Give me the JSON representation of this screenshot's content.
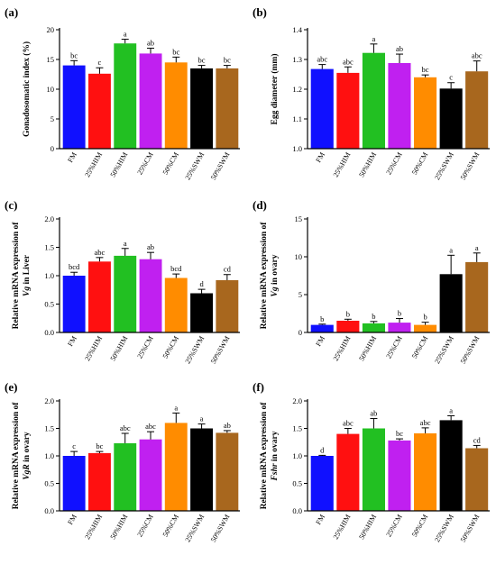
{
  "colors": {
    "FM": "#1010ff",
    "25%HIM": "#ff1010",
    "50%HIM": "#22c022",
    "25%CM": "#c020f0",
    "50%CM": "#ff8c00",
    "25%SWM": "#000000",
    "50%SWM": "#a8671e"
  },
  "chart_data": [
    {
      "type": "bar",
      "panel": "(a)",
      "ylabel_lines": [
        "Gonadosomatic index (%)"
      ],
      "categories": [
        "FM",
        "25%HIM",
        "50%HIM",
        "25%CM",
        "50%CM",
        "25%SWM",
        "50%SWM"
      ],
      "values": [
        14.0,
        12.6,
        17.7,
        16.0,
        14.5,
        13.5,
        13.5
      ],
      "errors": [
        0.8,
        1.0,
        0.7,
        0.9,
        0.9,
        0.5,
        0.5
      ],
      "letters": [
        "bc",
        "c",
        "a",
        "ab",
        "bc",
        "bc",
        "bc"
      ],
      "ylim": [
        0,
        20
      ],
      "yticks": [
        "0",
        "5",
        "10",
        "15",
        "20"
      ]
    },
    {
      "type": "bar",
      "panel": "(b)",
      "ylabel_lines": [
        "Egg diameter (mm)"
      ],
      "categories": [
        "FM",
        "25%HIM",
        "50%HIM",
        "25%CM",
        "50%CM",
        "25%SWM",
        "50%SWM"
      ],
      "values": [
        1.268,
        1.255,
        1.322,
        1.288,
        1.24,
        1.202,
        1.26
      ],
      "errors": [
        0.015,
        0.02,
        0.03,
        0.03,
        0.008,
        0.02,
        0.035
      ],
      "letters": [
        "abc",
        "abc",
        "a",
        "ab",
        "bc",
        "c",
        "abc"
      ],
      "ylim": [
        1.0,
        1.4
      ],
      "yticks": [
        "1.0",
        "1.1",
        "1.2",
        "1.3",
        "1.4"
      ]
    },
    {
      "type": "bar",
      "panel": "(c)",
      "ylabel_lines": [
        "Relative mRNA expression of",
        "Vg in Liver"
      ],
      "categories": [
        "FM",
        "25%HIM",
        "50%HIM",
        "25%CM",
        "50%CM",
        "25%SWM",
        "50%SWM"
      ],
      "values": [
        1.0,
        1.25,
        1.35,
        1.29,
        0.96,
        0.69,
        0.92
      ],
      "errors": [
        0.06,
        0.07,
        0.13,
        0.12,
        0.07,
        0.07,
        0.1
      ],
      "letters": [
        "bcd",
        "abc",
        "a",
        "ab",
        "bcd",
        "d",
        "cd"
      ],
      "ylim": [
        0,
        2.0
      ],
      "yticks": [
        "0.0",
        "0.5",
        "1.0",
        "1.5",
        "2.0"
      ]
    },
    {
      "type": "bar",
      "panel": "(d)",
      "ylabel_lines": [
        "Relative mRNA expression of",
        "Vg in ovary"
      ],
      "categories": [
        "FM",
        "25%HIM",
        "50%HIM",
        "25%CM",
        "50%CM",
        "25%SWM",
        "50%SWM"
      ],
      "values": [
        1.0,
        1.55,
        1.2,
        1.3,
        1.0,
        7.7,
        9.3
      ],
      "errors": [
        0.1,
        0.2,
        0.25,
        0.55,
        0.35,
        2.5,
        1.2
      ],
      "letters": [
        "b",
        "b",
        "b",
        "b",
        "b",
        "a",
        "a"
      ],
      "ylim": [
        0,
        15
      ],
      "yticks": [
        "0",
        "5",
        "10",
        "15"
      ]
    },
    {
      "type": "bar",
      "panel": "(e)",
      "ylabel_lines": [
        "Relative mRNA expression of",
        "VgR in ovary"
      ],
      "categories": [
        "FM",
        "25%HIM",
        "50%HIM",
        "25%CM",
        "50%CM",
        "25%SWM",
        "50%SWM"
      ],
      "values": [
        1.0,
        1.05,
        1.23,
        1.3,
        1.6,
        1.5,
        1.42
      ],
      "errors": [
        0.08,
        0.03,
        0.18,
        0.14,
        0.18,
        0.08,
        0.04
      ],
      "letters": [
        "c",
        "bc",
        "abc",
        "abc",
        "a",
        "a",
        "ab"
      ],
      "ylim": [
        0,
        2.0
      ],
      "yticks": [
        "0.0",
        "0.5",
        "1.0",
        "1.5",
        "2.0"
      ]
    },
    {
      "type": "bar",
      "panel": "(f)",
      "ylabel_lines": [
        "Relative mRNA expression of",
        "Fshr in ovary"
      ],
      "categories": [
        "FM",
        "25%HIM",
        "50%HIM",
        "25%CM",
        "50%CM",
        "25%SWM",
        "50%SWM"
      ],
      "values": [
        1.0,
        1.4,
        1.5,
        1.28,
        1.41,
        1.65,
        1.14
      ],
      "errors": [
        0.01,
        0.1,
        0.18,
        0.03,
        0.1,
        0.08,
        0.05
      ],
      "letters": [
        "d",
        "abc",
        "ab",
        "bc",
        "abc",
        "a",
        "cd"
      ],
      "ylim": [
        0,
        2.0
      ],
      "yticks": [
        "0.0",
        "0.5",
        "1.0",
        "1.5",
        "2.0"
      ]
    }
  ]
}
